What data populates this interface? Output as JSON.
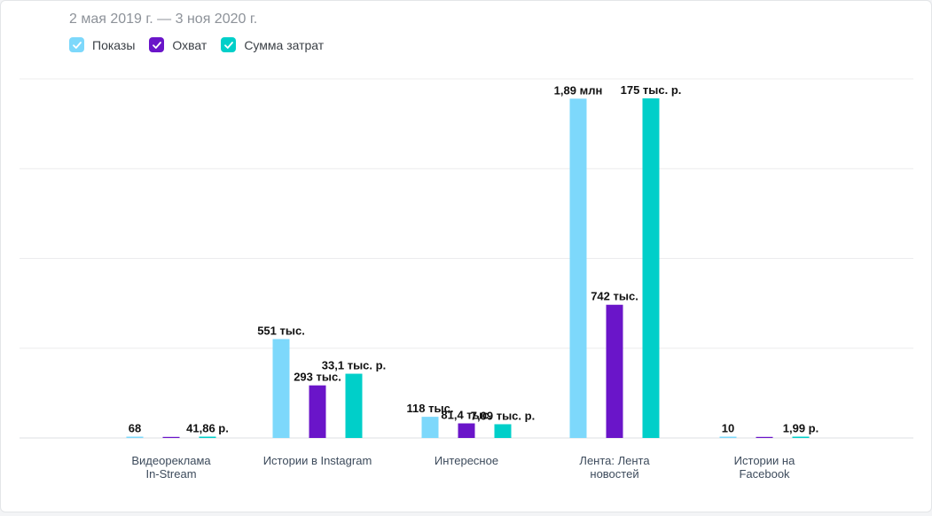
{
  "header": {
    "date_range": "2 мая 2019 г. — 3 ноя 2020 г."
  },
  "legend": [
    {
      "label": "Показы",
      "color": "#7dd8fb",
      "checked": true,
      "icon": "checkmark-icon"
    },
    {
      "label": "Охват",
      "color": "#6a15c9",
      "checked": true,
      "icon": "checkmark-icon"
    },
    {
      "label": "Сумма затрат",
      "color": "#00cfc9",
      "checked": true,
      "icon": "checkmark-icon"
    }
  ],
  "chart_data": {
    "type": "bar",
    "categories": [
      [
        "Видеореклама",
        "In-Stream"
      ],
      [
        "Истории в Instagram"
      ],
      [
        "Интересное"
      ],
      [
        "Лента: Лента",
        "новостей"
      ],
      [
        "Истории на",
        "Facebook"
      ]
    ],
    "series": [
      {
        "name": "Показы",
        "color": "#7dd8fb",
        "values": [
          68,
          551000,
          118000,
          1890000,
          10
        ],
        "labels": [
          "68",
          "551 тыс.",
          "118 тыс.",
          "1,89 млн",
          "10"
        ]
      },
      {
        "name": "Охват",
        "color": "#6a15c9",
        "values": [
          null,
          293000,
          81400,
          742000,
          null
        ],
        "labels": [
          "",
          "293 тыс.",
          "81,4 тыс.",
          "742 тыс.",
          ""
        ]
      },
      {
        "name": "Сумма затрат",
        "color": "#00cfc9",
        "values": [
          41.86,
          33100,
          7090,
          175000,
          1.99
        ],
        "labels": [
          "41,86 р.",
          "33,1 тыс. р.",
          "7,09 тыс. р.",
          "175 тыс. р.",
          "1,99 р."
        ]
      }
    ],
    "secondary_axis_series": [
      "Сумма затрат"
    ],
    "ylim": [
      0,
      2000000
    ],
    "y2lim": [
      0,
      185000
    ],
    "grid": true,
    "legend_position": "top-left"
  }
}
